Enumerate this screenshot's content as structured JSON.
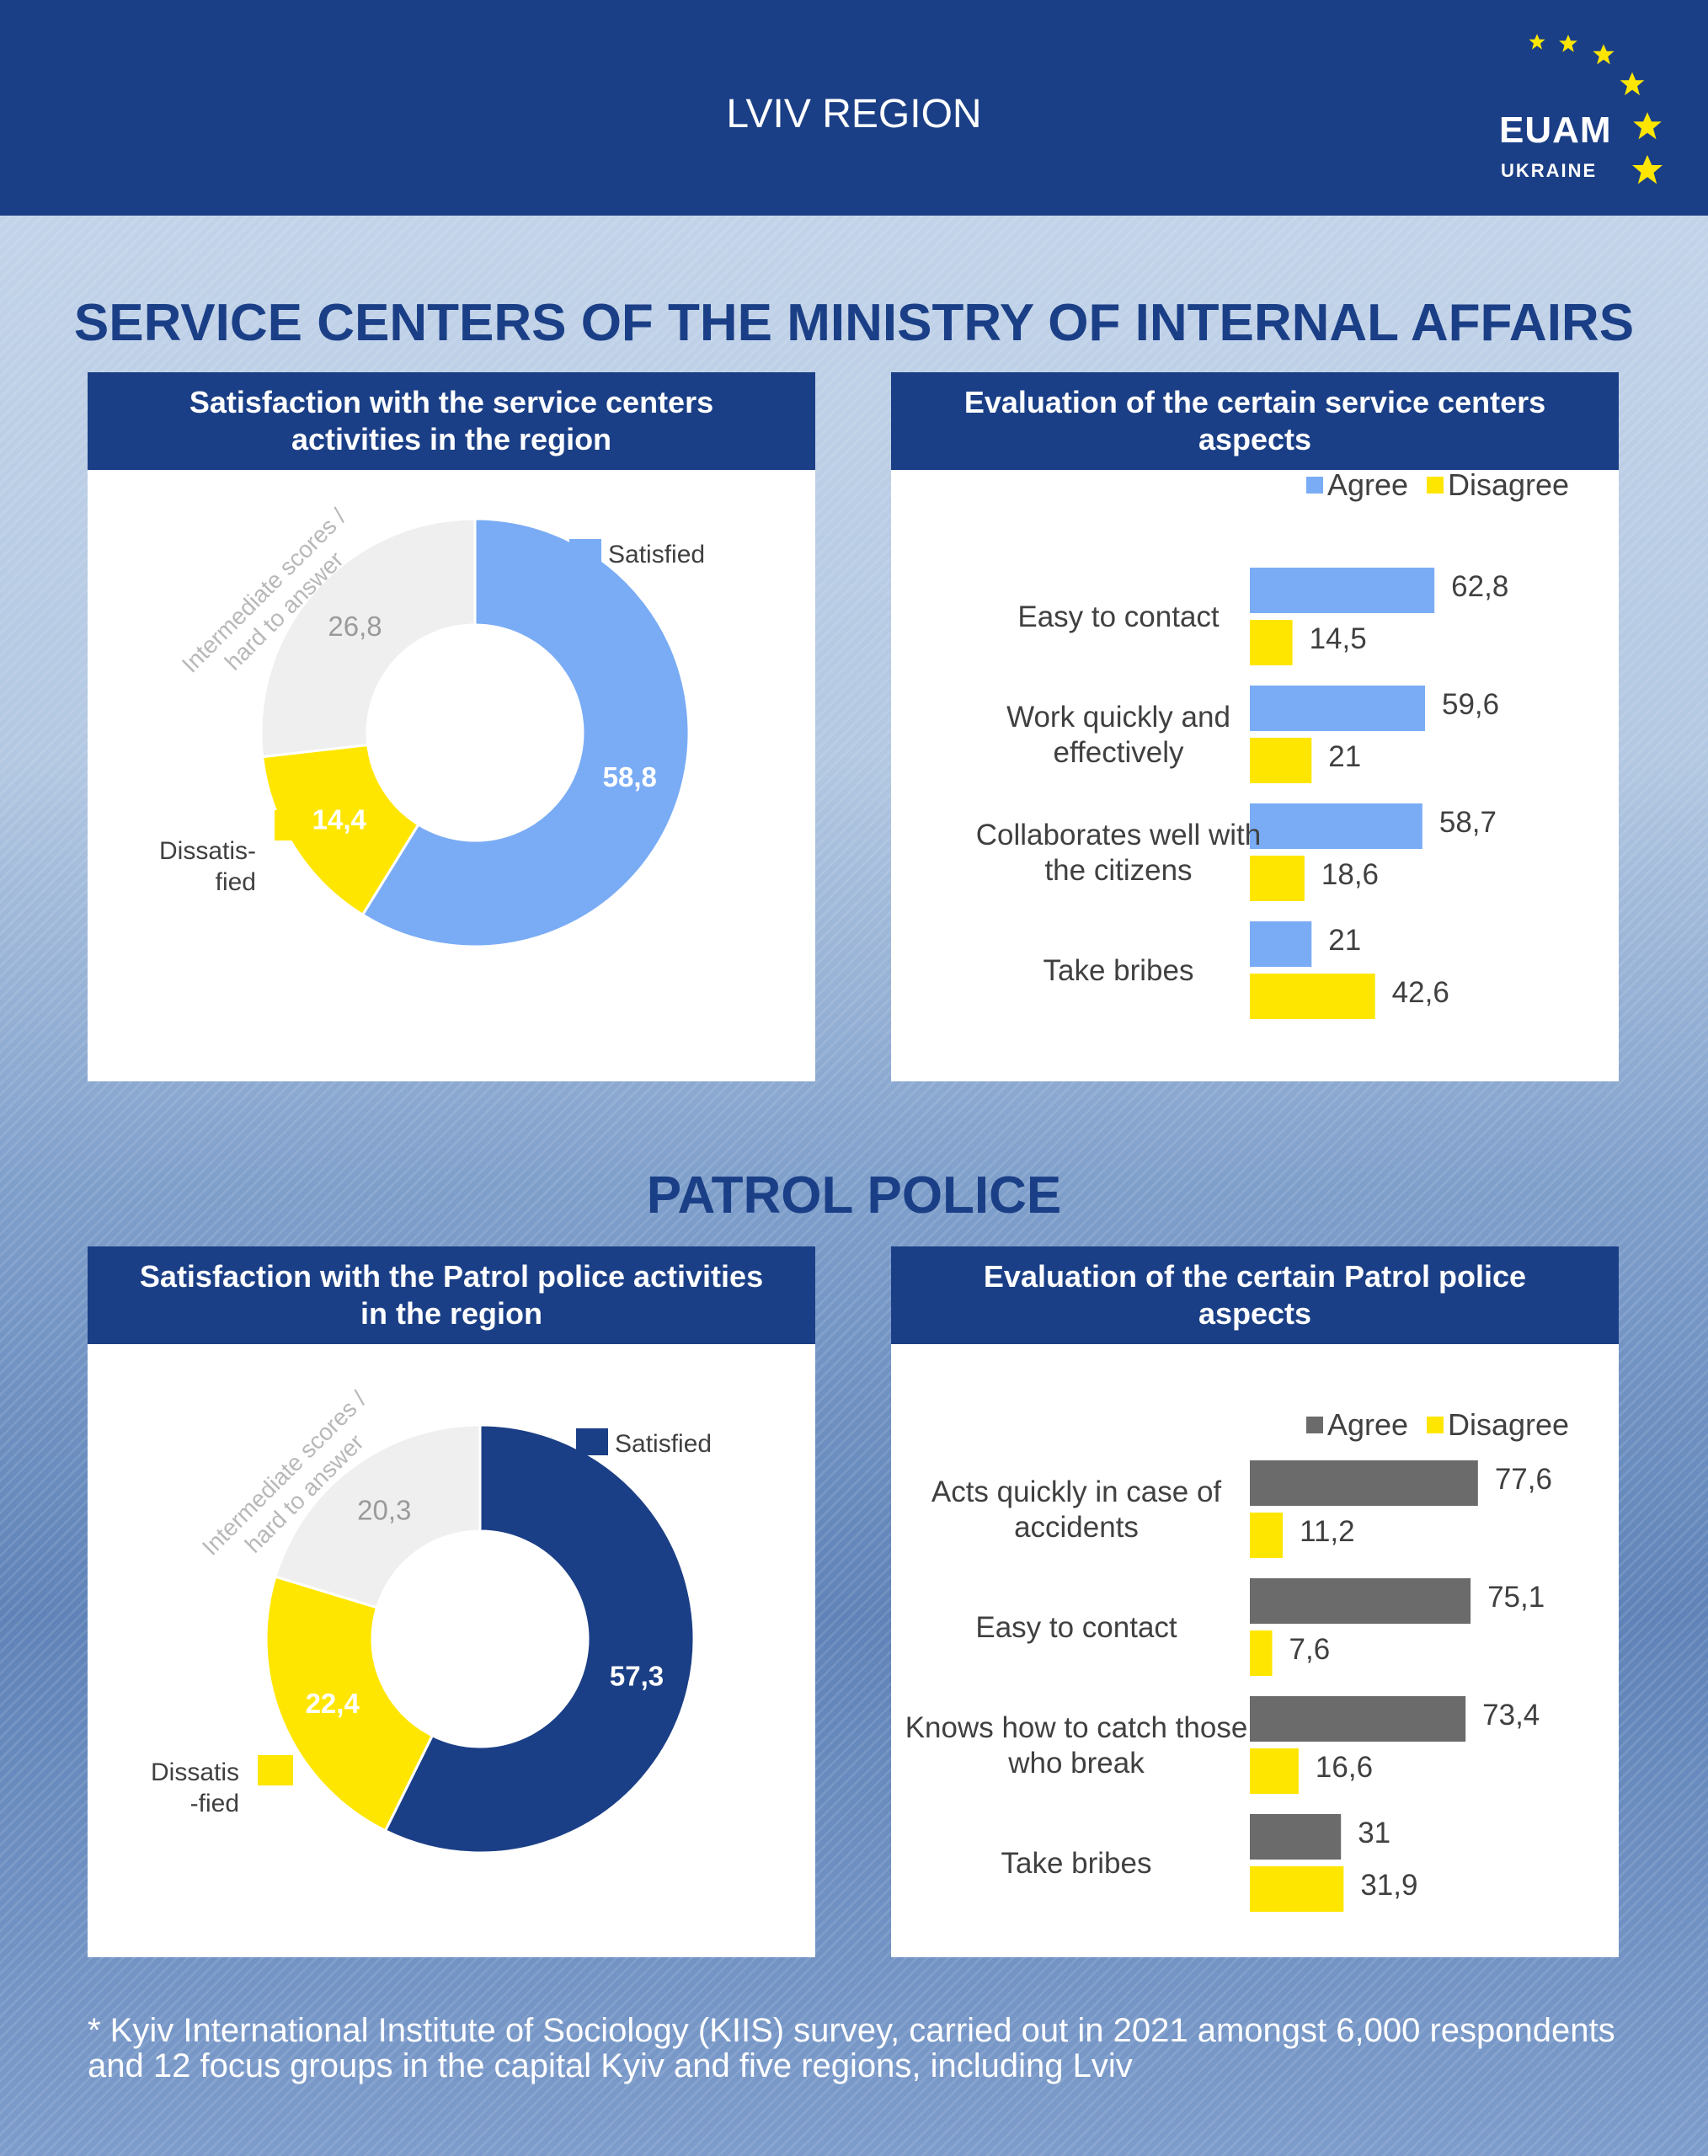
{
  "header": {
    "region": "LVIV REGION",
    "logo_main": "EUAM",
    "logo_sub": "UKRAINE"
  },
  "colors": {
    "navy": "#1b3f86",
    "light_blue": "#7aacf5",
    "yellow": "#ffe600",
    "light_gray": "#efefef",
    "dark_gray": "#6b6b6b"
  },
  "sections": {
    "service_centers": "SERVICE CENTERS OF THE MINISTRY OF INTERNAL AFFAIRS",
    "patrol_police": "PATROL POLICE"
  },
  "panels": {
    "sc_donut_title": "Satisfaction with the service centers activities in the region",
    "sc_bar_title": "Evaluation of the certain service centers aspects",
    "pp_donut_title": "Satisfaction with the Patrol police activities in the region",
    "pp_bar_title": "Evaluation of the certain Patrol police aspects"
  },
  "chart_data": [
    {
      "type": "pie",
      "title": "Satisfaction with the service centers activities in the region",
      "labels": [
        "Satisfied",
        "Dissatis-fied",
        "Intermediate scores / hard to answer"
      ],
      "values": [
        58.8,
        14.4,
        26.8
      ],
      "value_labels": [
        "58,8",
        "14,4",
        "26,8"
      ],
      "colors": [
        "#7aacf5",
        "#ffe600",
        "#efefef"
      ]
    },
    {
      "type": "bar",
      "orientation": "horizontal",
      "title": "Evaluation of the certain service centers aspects",
      "categories": [
        "Easy to contact",
        "Work quickly and effectively",
        "Collaborates well with the citizens",
        "Take bribes"
      ],
      "series": [
        {
          "name": "Agree",
          "values": [
            62.8,
            59.6,
            58.7,
            21
          ],
          "labels": [
            "62,8",
            "59,6",
            "58,7",
            "21"
          ],
          "color": "#7aacf5"
        },
        {
          "name": "Disagree",
          "values": [
            14.5,
            21,
            18.6,
            42.6
          ],
          "labels": [
            "14,5",
            "21",
            "18,6",
            "42,6"
          ],
          "color": "#ffe600"
        }
      ],
      "legend": "top-right"
    },
    {
      "type": "pie",
      "title": "Satisfaction with the Patrol police activities in the region",
      "labels": [
        "Satisfied",
        "Dissatis-fied",
        "Intermediate scores / hard to answer"
      ],
      "values": [
        57.3,
        22.4,
        20.3
      ],
      "value_labels": [
        "57,3",
        "22,4",
        "20,3"
      ],
      "colors": [
        "#1b3f86",
        "#ffe600",
        "#efefef"
      ]
    },
    {
      "type": "bar",
      "orientation": "horizontal",
      "title": "Evaluation of the certain Patrol police aspects",
      "categories": [
        "Acts quickly in case of accidents",
        "Easy to contact",
        "Knows how to catch those who break",
        "Take bribes"
      ],
      "series": [
        {
          "name": "Agree",
          "values": [
            77.6,
            75.1,
            73.4,
            31
          ],
          "labels": [
            "77,6",
            "75,1",
            "73,4",
            "31"
          ],
          "color": "#6b6b6b"
        },
        {
          "name": "Disagree",
          "values": [
            11.2,
            7.6,
            16.6,
            31.9
          ],
          "labels": [
            "11,2",
            "7,6",
            "16,6",
            "31,9"
          ],
          "color": "#ffe600"
        }
      ],
      "legend": "top-right"
    }
  ],
  "footnote": "* Kyiv International Institute of Sociology (KIIS) survey, carried out in 2021 amongst 6,000 respondents and 12 focus groups in the capital Kyiv and five regions, including Lviv"
}
